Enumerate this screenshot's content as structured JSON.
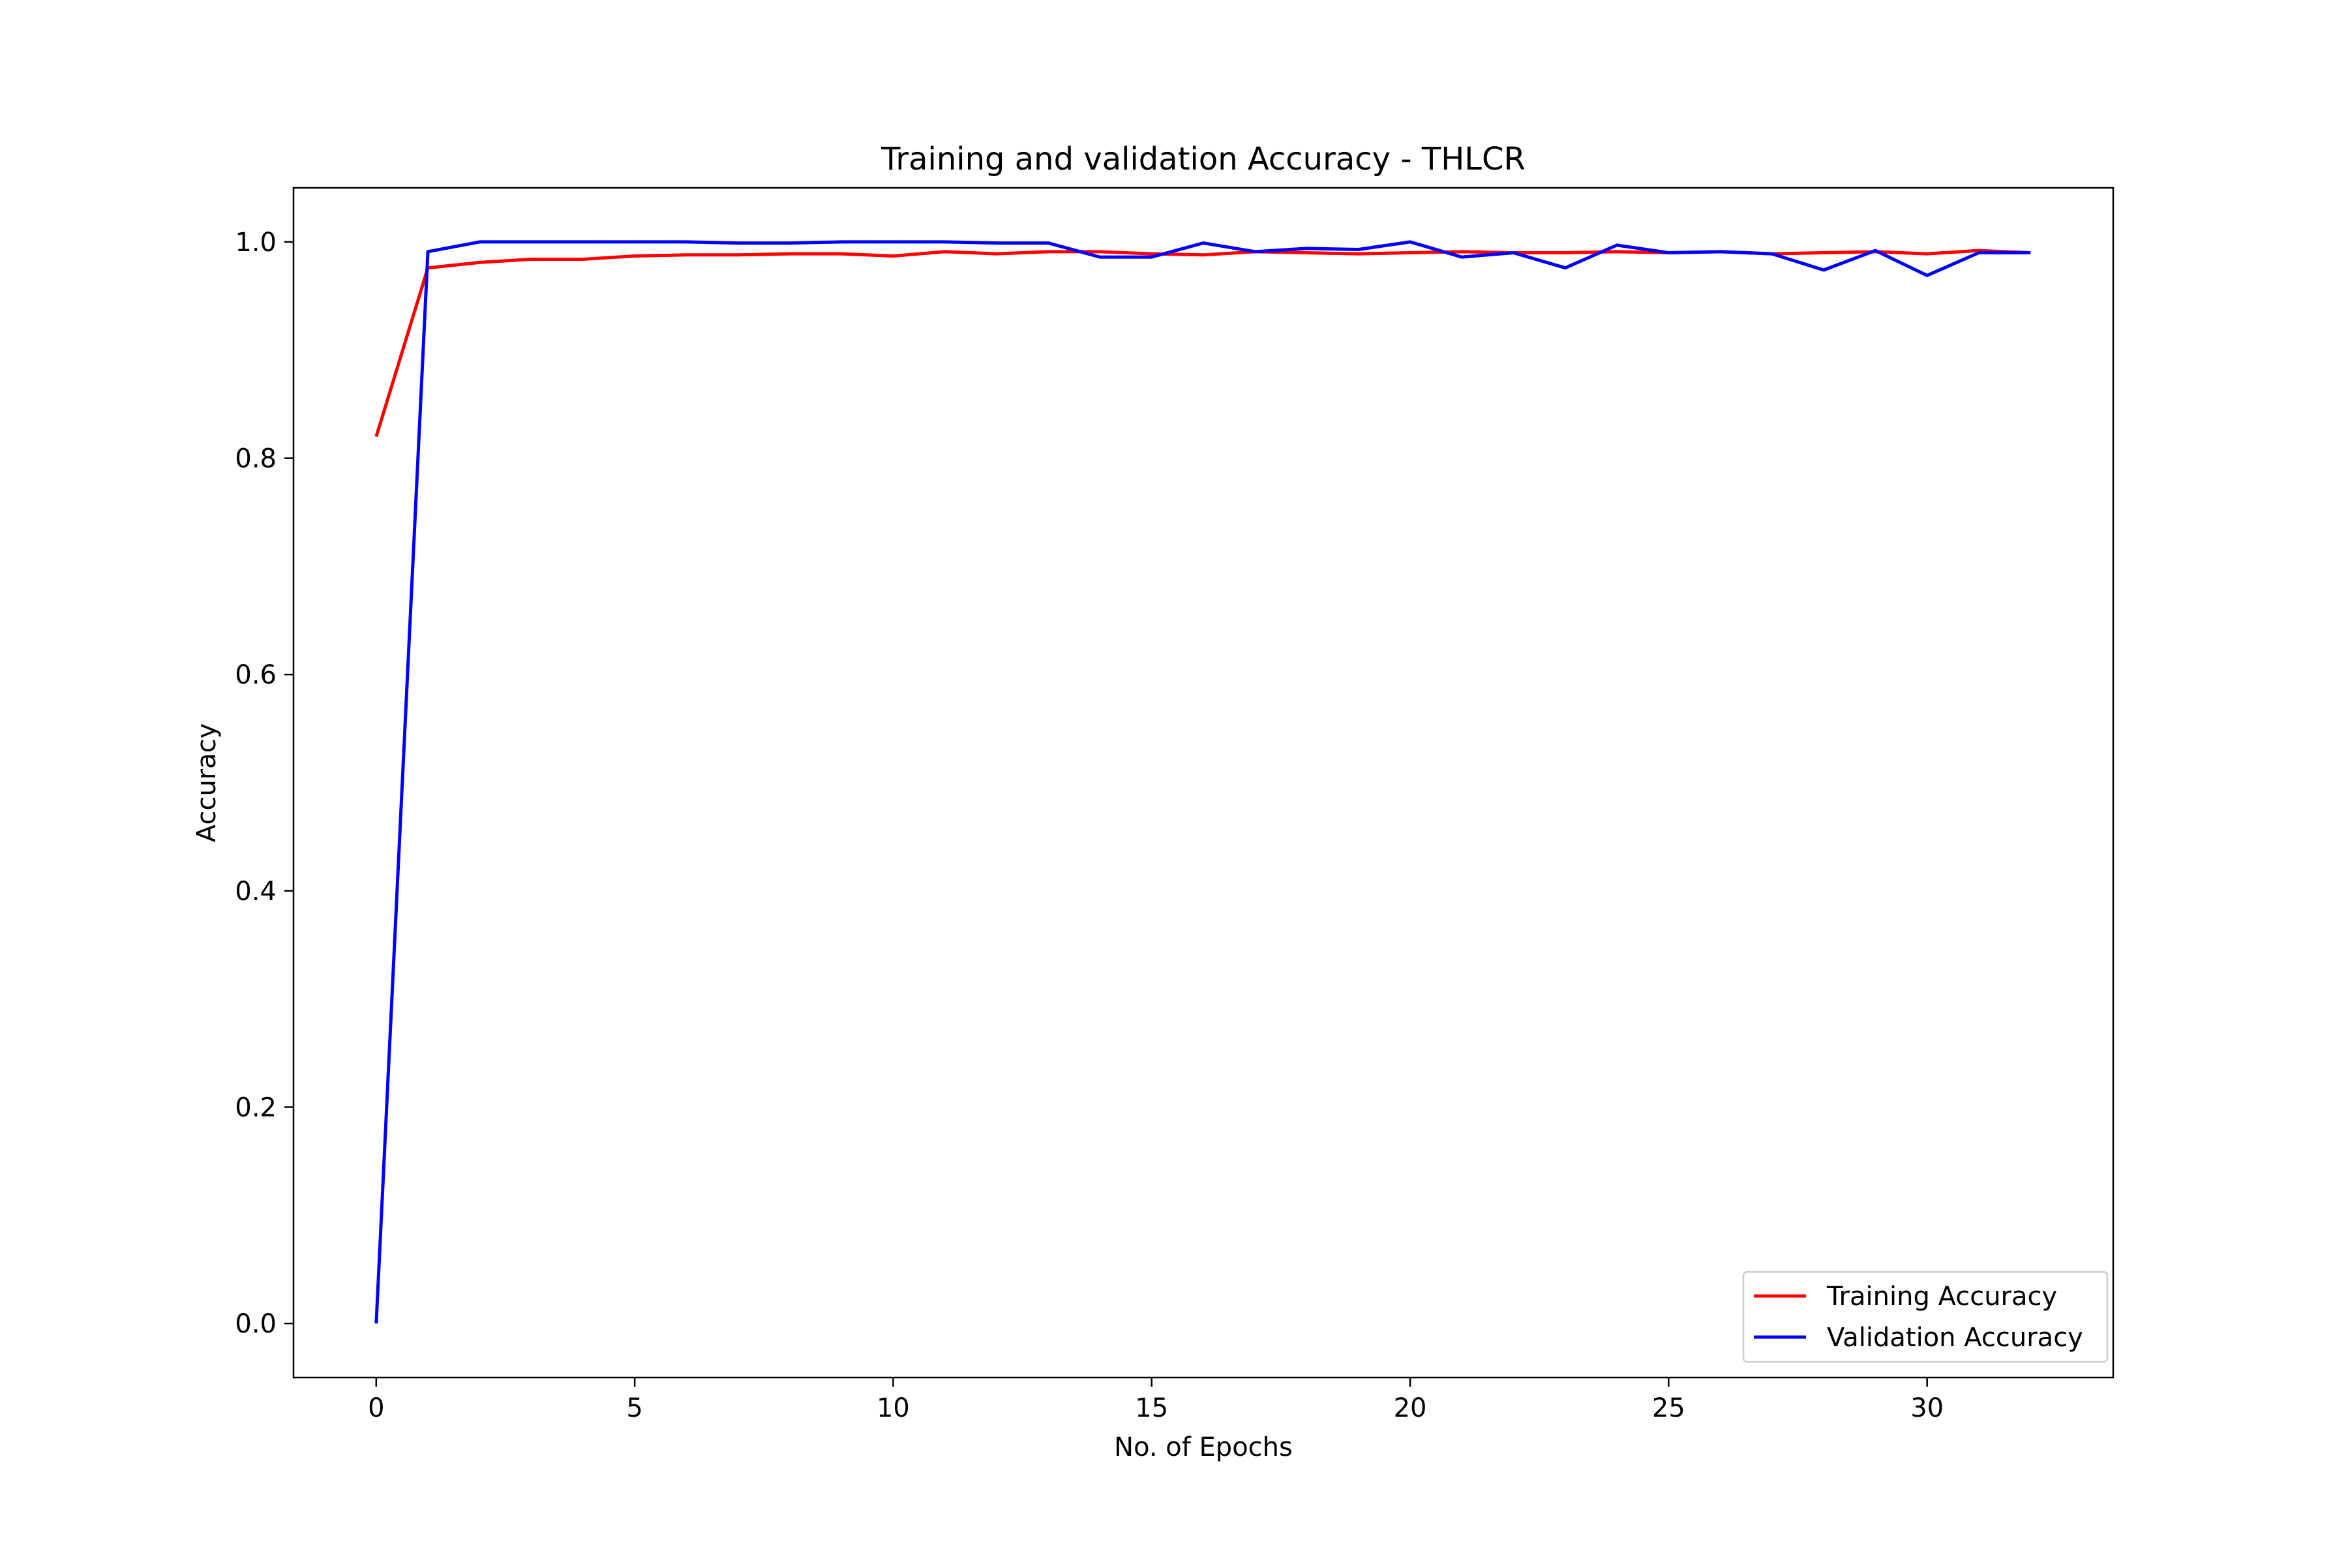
{
  "chart_data": {
    "type": "line",
    "title": "Training and validation Accuracy - THLCR",
    "xlabel": "No. of Epochs",
    "ylabel": "Accuracy",
    "xlim": [
      -1.6,
      33.6
    ],
    "ylim": [
      -0.05,
      1.05
    ],
    "xticks": [
      0,
      5,
      10,
      15,
      20,
      25,
      30
    ],
    "yticks": [
      0.0,
      0.2,
      0.4,
      0.6,
      0.8,
      1.0
    ],
    "ytick_labels": [
      "0.0",
      "0.2",
      "0.4",
      "0.6",
      "0.8",
      "1.0"
    ],
    "grid": false,
    "legend_position": "lower-right",
    "x": [
      0,
      1,
      2,
      3,
      4,
      5,
      6,
      7,
      8,
      9,
      10,
      11,
      12,
      13,
      14,
      15,
      16,
      17,
      18,
      19,
      20,
      21,
      22,
      23,
      24,
      25,
      26,
      27,
      28,
      29,
      30,
      31,
      32
    ],
    "series": [
      {
        "name": "Training Accuracy",
        "color": "#ff0000",
        "values": [
          0.82,
          0.976,
          0.981,
          0.984,
          0.984,
          0.987,
          0.988,
          0.988,
          0.989,
          0.989,
          0.987,
          0.991,
          0.989,
          0.991,
          0.991,
          0.989,
          0.988,
          0.991,
          0.99,
          0.989,
          0.99,
          0.991,
          0.99,
          0.99,
          0.991,
          0.99,
          0.991,
          0.989,
          0.99,
          0.991,
          0.989,
          0.992,
          0.99
        ]
      },
      {
        "name": "Validation Accuracy",
        "color": "#0000ff",
        "values": [
          0.0,
          0.991,
          1.0,
          1.0,
          1.0,
          1.0,
          1.0,
          0.999,
          0.999,
          1.0,
          1.0,
          1.0,
          0.999,
          0.999,
          0.986,
          0.986,
          0.999,
          0.991,
          0.994,
          0.993,
          1.0,
          0.986,
          0.99,
          0.976,
          0.997,
          0.99,
          0.991,
          0.989,
          0.974,
          0.992,
          0.969,
          0.99,
          0.99
        ]
      }
    ]
  }
}
